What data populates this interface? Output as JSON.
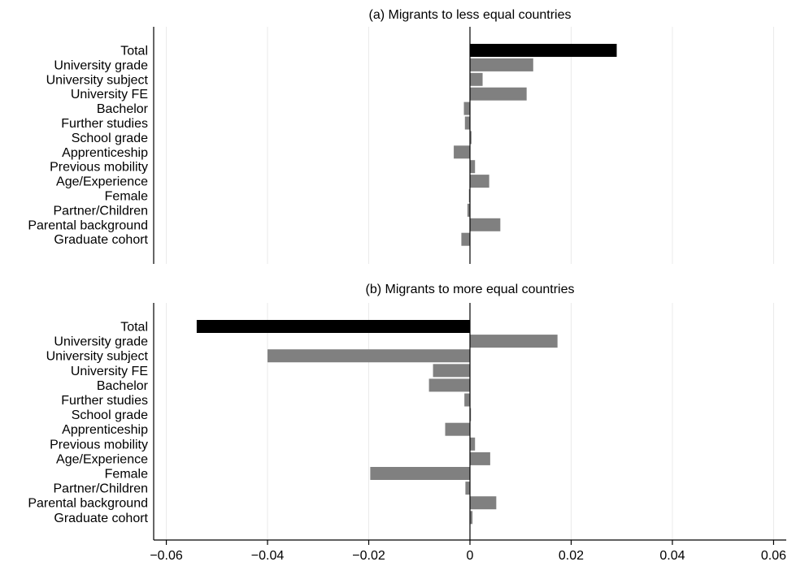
{
  "chart_data": [
    {
      "type": "bar",
      "orientation": "horizontal",
      "title": "(a) Migrants to less equal countries",
      "categories": [
        "Total",
        "University grade",
        "University subject",
        "University FE",
        "Bachelor",
        "Further studies",
        "School grade",
        "Apprenticeship",
        "Previous mobility",
        "Age/Experience",
        "Female",
        "Partner/Children",
        "Parental background",
        "Graduate cohort"
      ],
      "values": [
        0.029,
        0.0125,
        0.0025,
        0.0112,
        -0.0012,
        -0.001,
        0.0003,
        -0.0032,
        0.001,
        0.0038,
        -0.0002,
        -0.0005,
        0.006,
        -0.0017
      ],
      "highlight_category": "Total",
      "xlim": [
        -0.0625,
        0.0625
      ],
      "grid": true
    },
    {
      "type": "bar",
      "orientation": "horizontal",
      "title": "(b) Migrants to more equal countries",
      "categories": [
        "Total",
        "University grade",
        "University subject",
        "University FE",
        "Bachelor",
        "Further studies",
        "School grade",
        "Apprenticeship",
        "Previous mobility",
        "Age/Experience",
        "Female",
        "Partner/Children",
        "Parental background",
        "Graduate cohort"
      ],
      "values": [
        -0.054,
        0.0173,
        -0.04,
        -0.0073,
        -0.0081,
        -0.0011,
        0.0002,
        -0.0049,
        0.001,
        0.004,
        -0.0197,
        -0.0009,
        0.0052,
        0.0005
      ],
      "highlight_category": "Total",
      "xlim": [
        -0.0625,
        0.0625
      ],
      "grid": true
    }
  ],
  "x_axis": {
    "ticks": [
      -0.06,
      -0.04,
      -0.02,
      0,
      0.02,
      0.04,
      0.06
    ],
    "tick_labels": [
      "−0.06",
      "−0.04",
      "−0.02",
      "0",
      "0.02",
      "0.04",
      "0.06"
    ]
  },
  "colors": {
    "highlight_bar": "#000000",
    "bar": "#808080",
    "grid": "#eaeaea",
    "axis": "#000000"
  }
}
